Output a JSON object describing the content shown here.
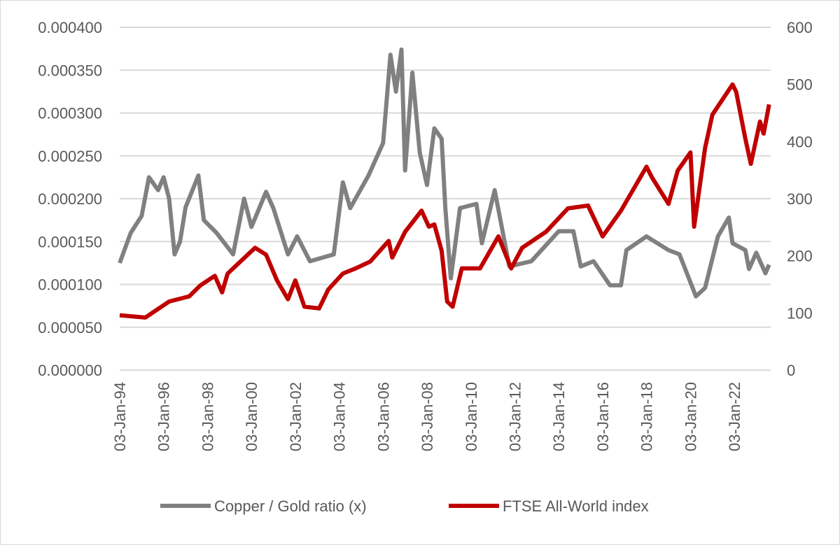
{
  "chart_data": {
    "type": "line",
    "title": "",
    "xlabel": "",
    "ylabel_left": "",
    "ylabel_right": "",
    "x_ticks": [
      "03-Jan-94",
      "03-Jan-96",
      "03-Jan-98",
      "03-Jan-00",
      "03-Jan-02",
      "03-Jan-04",
      "03-Jan-06",
      "03-Jan-08",
      "03-Jan-10",
      "03-Jan-12",
      "03-Jan-14",
      "03-Jan-16",
      "03-Jan-18",
      "03-Jan-20",
      "03-Jan-22"
    ],
    "x_range": [
      "1994-01",
      "2023-08"
    ],
    "y_left": {
      "range": [
        0,
        0.0004
      ],
      "ticks": [
        "0.000000",
        "0.000050",
        "0.000100",
        "0.000150",
        "0.000200",
        "0.000250",
        "0.000300",
        "0.000350",
        "0.000400"
      ]
    },
    "y_right": {
      "range": [
        0,
        600
      ],
      "ticks": [
        "0",
        "100",
        "200",
        "300",
        "400",
        "500",
        "600"
      ]
    },
    "grid": true,
    "legend_position": "bottom",
    "series": [
      {
        "name": "Copper / Gold ratio (x)",
        "axis": "left",
        "color": "#808080",
        "points": [
          [
            "1994-01",
            0.000125
          ],
          [
            "1994-07",
            0.00016
          ],
          [
            "1995-01",
            0.00018
          ],
          [
            "1995-05",
            0.000225
          ],
          [
            "1995-10",
            0.00021
          ],
          [
            "1996-01",
            0.000225
          ],
          [
            "1996-04",
            0.0002
          ],
          [
            "1996-07",
            0.000135
          ],
          [
            "1996-10",
            0.00015
          ],
          [
            "1997-01",
            0.00019
          ],
          [
            "1997-08",
            0.000227
          ],
          [
            "1997-11",
            0.000175
          ],
          [
            "1998-06",
            0.00016
          ],
          [
            "1999-03",
            0.000135
          ],
          [
            "1999-09",
            0.0002
          ],
          [
            "2000-01",
            0.000167
          ],
          [
            "2000-09",
            0.000208
          ],
          [
            "2001-01",
            0.000189
          ],
          [
            "2001-09",
            0.000135
          ],
          [
            "2002-02",
            0.000156
          ],
          [
            "2002-09",
            0.000127
          ],
          [
            "2003-10",
            0.000135
          ],
          [
            "2004-03",
            0.000219
          ],
          [
            "2004-07",
            0.000189
          ],
          [
            "2005-05",
            0.000227
          ],
          [
            "2006-01",
            0.000265
          ],
          [
            "2006-05",
            0.000368
          ],
          [
            "2006-08",
            0.000325
          ],
          [
            "2006-11",
            0.000374
          ],
          [
            "2007-01",
            0.000233
          ],
          [
            "2007-05",
            0.000347
          ],
          [
            "2007-09",
            0.000254
          ],
          [
            "2008-01",
            0.000216
          ],
          [
            "2008-05",
            0.000282
          ],
          [
            "2008-09",
            0.00027
          ],
          [
            "2008-11",
            0.000189
          ],
          [
            "2009-02",
            0.000107
          ],
          [
            "2009-07",
            0.000189
          ],
          [
            "2010-04",
            0.000194
          ],
          [
            "2010-07",
            0.000148
          ],
          [
            "2011-02",
            0.00021
          ],
          [
            "2011-10",
            0.000121
          ],
          [
            "2012-10",
            0.000127
          ],
          [
            "2014-01",
            0.000162
          ],
          [
            "2014-09",
            0.000162
          ],
          [
            "2015-01",
            0.000121
          ],
          [
            "2015-08",
            0.000127
          ],
          [
            "2016-05",
            9.9e-05
          ],
          [
            "2016-11",
            9.9e-05
          ],
          [
            "2017-02",
            0.00014
          ],
          [
            "2018-01",
            0.000156
          ],
          [
            "2019-01",
            0.00014
          ],
          [
            "2019-07",
            0.000135
          ],
          [
            "2020-04",
            8.6e-05
          ],
          [
            "2020-09",
            9.6e-05
          ],
          [
            "2021-04",
            0.000156
          ],
          [
            "2021-10",
            0.000178
          ],
          [
            "2021-12",
            0.000148
          ],
          [
            "2022-07",
            0.00014
          ],
          [
            "2022-09",
            0.000118
          ],
          [
            "2023-01",
            0.000137
          ],
          [
            "2023-06",
            0.000113
          ],
          [
            "2023-08",
            0.000123
          ]
        ]
      },
      {
        "name": "FTSE All-World index",
        "axis": "right",
        "color": "#c00000",
        "points": [
          [
            "1994-01",
            96
          ],
          [
            "1995-03",
            92
          ],
          [
            "1996-04",
            120
          ],
          [
            "1997-03",
            129
          ],
          [
            "1997-09",
            148
          ],
          [
            "1998-05",
            165
          ],
          [
            "1998-09",
            136
          ],
          [
            "1998-12",
            169
          ],
          [
            "2000-03",
            214
          ],
          [
            "2000-09",
            202
          ],
          [
            "2001-03",
            157
          ],
          [
            "2001-09",
            124
          ],
          [
            "2002-01",
            157
          ],
          [
            "2002-06",
            111
          ],
          [
            "2003-02",
            108
          ],
          [
            "2003-07",
            141
          ],
          [
            "2004-03",
            169
          ],
          [
            "2004-10",
            178
          ],
          [
            "2005-06",
            190
          ],
          [
            "2006-04",
            226
          ],
          [
            "2006-06",
            197
          ],
          [
            "2007-01",
            242
          ],
          [
            "2007-10",
            279
          ],
          [
            "2008-02",
            251
          ],
          [
            "2008-05",
            255
          ],
          [
            "2008-09",
            209
          ],
          [
            "2008-12",
            120
          ],
          [
            "2009-03",
            111
          ],
          [
            "2009-08",
            178
          ],
          [
            "2010-06",
            178
          ],
          [
            "2011-04",
            234
          ],
          [
            "2011-11",
            178
          ],
          [
            "2012-05",
            214
          ],
          [
            "2013-06",
            242
          ],
          [
            "2014-06",
            283
          ],
          [
            "2015-05",
            288
          ],
          [
            "2016-01",
            234
          ],
          [
            "2016-11",
            279
          ],
          [
            "2018-01",
            356
          ],
          [
            "2018-04",
            337
          ],
          [
            "2019-01",
            291
          ],
          [
            "2019-06",
            349
          ],
          [
            "2020-01",
            381
          ],
          [
            "2020-03",
            251
          ],
          [
            "2020-09",
            389
          ],
          [
            "2021-01",
            447
          ],
          [
            "2021-12",
            500
          ],
          [
            "2022-02",
            487
          ],
          [
            "2022-07",
            405
          ],
          [
            "2022-10",
            361
          ],
          [
            "2023-03",
            435
          ],
          [
            "2023-05",
            414
          ],
          [
            "2023-08",
            465
          ]
        ]
      }
    ]
  }
}
